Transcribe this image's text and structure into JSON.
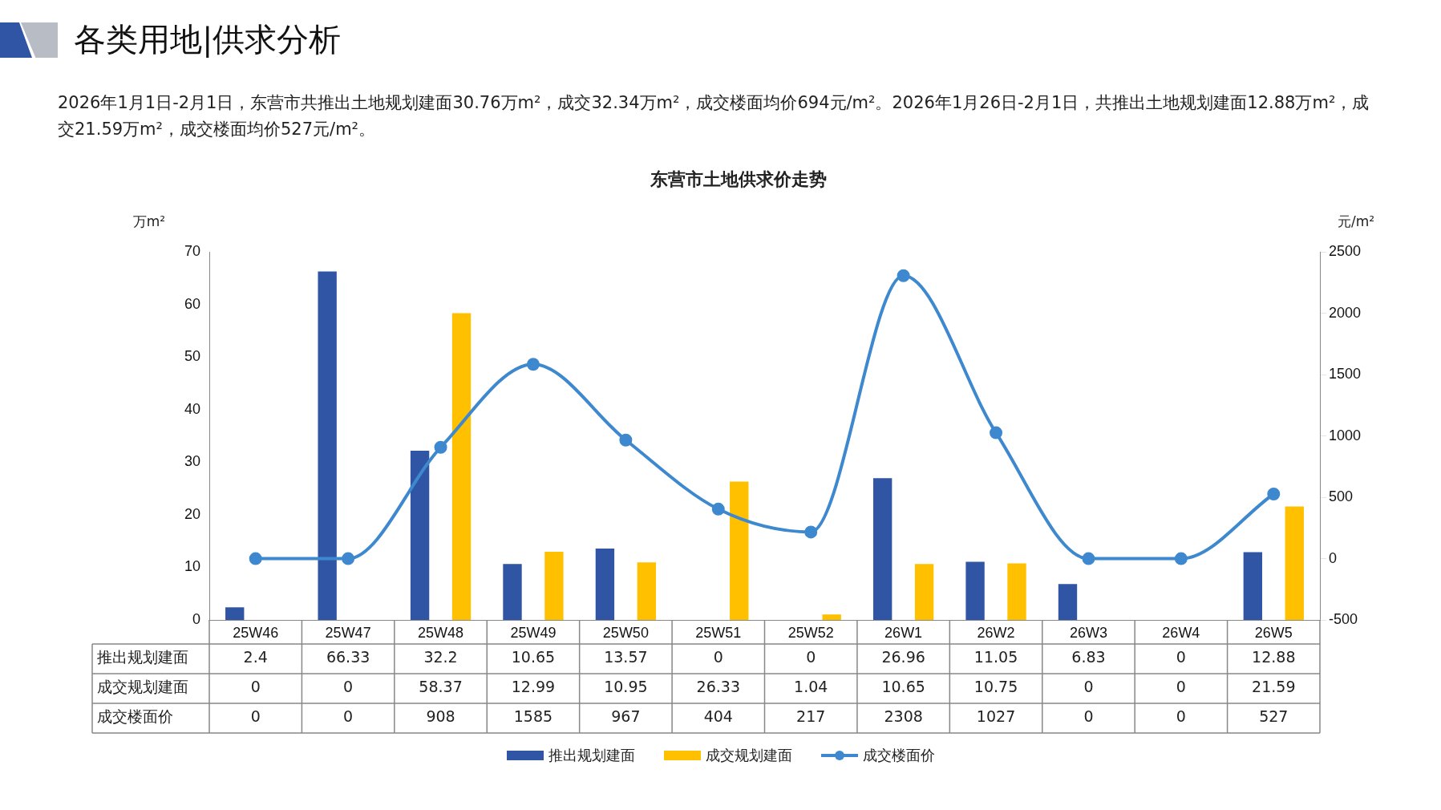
{
  "chart_data": {
    "type": "bar",
    "title": "东营市土地供求价走势",
    "annotations": [
      "各类用地|供求分析",
      "2026年1月1日-2月1日，东营市共推出土地规划建面30.76万m²，成交32.34万m²，成交楼面均价694元/m²。2026年1月26日-2月1日，共推出土地规划建面12.88万m²，成交21.59万m²，成交楼面均价527元/m²。"
    ],
    "ylabel": "万m²",
    "y2label": "元/m²",
    "categories": [
      "25W46",
      "25W47",
      "25W48",
      "25W49",
      "25W50",
      "25W51",
      "25W52",
      "26W1",
      "26W2",
      "26W3",
      "26W4",
      "26W5"
    ],
    "series": [
      {
        "name": "推出规划建面",
        "color": "#2f55a4",
        "values": [
          2.4,
          66.33,
          32.2,
          10.65,
          13.57,
          0,
          0,
          26.96,
          11.05,
          6.83,
          0,
          12.88
        ]
      },
      {
        "name": "成交规划建面",
        "color": "#ffc000",
        "values": [
          0,
          0,
          58.37,
          12.99,
          10.95,
          26.33,
          1.04,
          10.65,
          10.75,
          0,
          0,
          21.59
        ]
      },
      {
        "name": "成交楼面价",
        "type": "line",
        "axis": "y2",
        "color": "#3d88cf",
        "values": [
          0,
          0,
          908,
          1585,
          967,
          404,
          217,
          2308,
          1027,
          0,
          0,
          527
        ]
      }
    ],
    "ylim": [
      0,
      70
    ],
    "yticks": [
      0,
      10,
      20,
      30,
      40,
      50,
      60,
      70
    ],
    "y2lim": [
      -500,
      2500
    ],
    "y2ticks": [
      -500,
      0,
      500,
      1000,
      1500,
      2000,
      2500
    ],
    "grid": false,
    "legend": "bottom",
    "marker": "circle",
    "line_style": "solid",
    "data_labels": true
  }
}
